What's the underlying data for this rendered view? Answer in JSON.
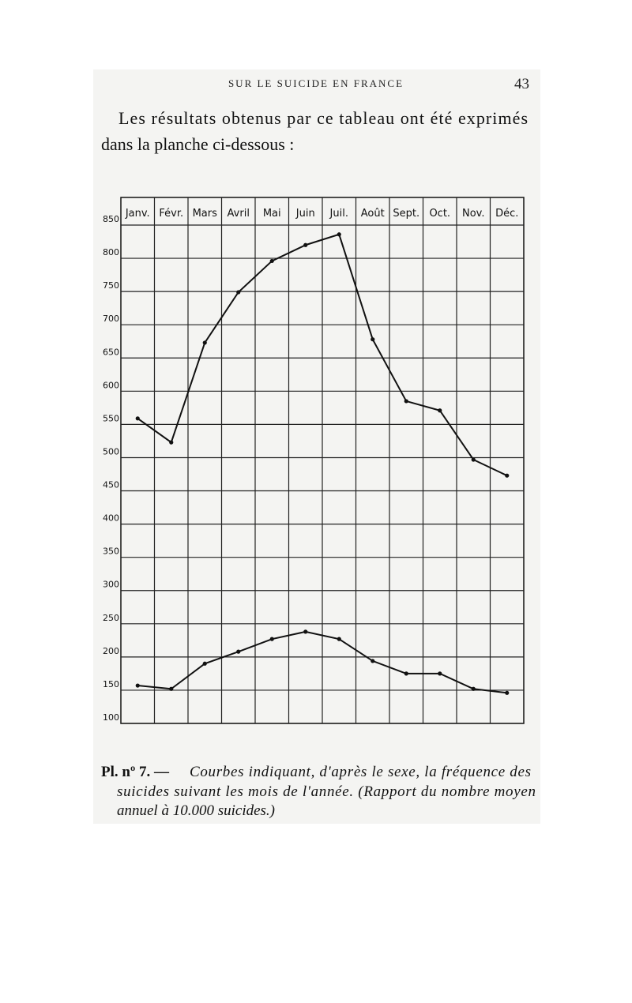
{
  "header": {
    "title": "SUR LE SUICIDE EN FRANCE",
    "page": "43"
  },
  "paragraph": [
    "Les résultats obtenus par ce tableau ont été exprimés",
    "dans la planche ci-dessous :"
  ],
  "chart_data": {
    "type": "line",
    "categories": [
      "Janv.",
      "Févr.",
      "Mars",
      "Avril",
      "Mai",
      "Juin",
      "Juil.",
      "Août",
      "Sept.",
      "Oct.",
      "Nov.",
      "Déc."
    ],
    "series": [
      {
        "color": "#111111",
        "values": [
          559,
          523,
          673,
          749,
          796,
          820,
          836,
          678,
          585,
          571,
          497,
          473
        ]
      },
      {
        "color": "#111111",
        "values": [
          157,
          152,
          190,
          208,
          227,
          238,
          227,
          194,
          175,
          175,
          152,
          146
        ]
      }
    ],
    "ylim": [
      100,
      850
    ],
    "yticks": [
      100,
      150,
      200,
      250,
      300,
      350,
      400,
      450,
      500,
      550,
      600,
      650,
      700,
      750,
      800,
      850
    ],
    "grid": true
  },
  "caption": {
    "label": "Pl. nº 7. —",
    "lines": [
      "Courbes indiquant, d'après le sexe, la fréquence des",
      "suicides suivant les mois de l'année. (Rapport du nombre moyen",
      "annuel à 10.000 suicides.)"
    ]
  }
}
